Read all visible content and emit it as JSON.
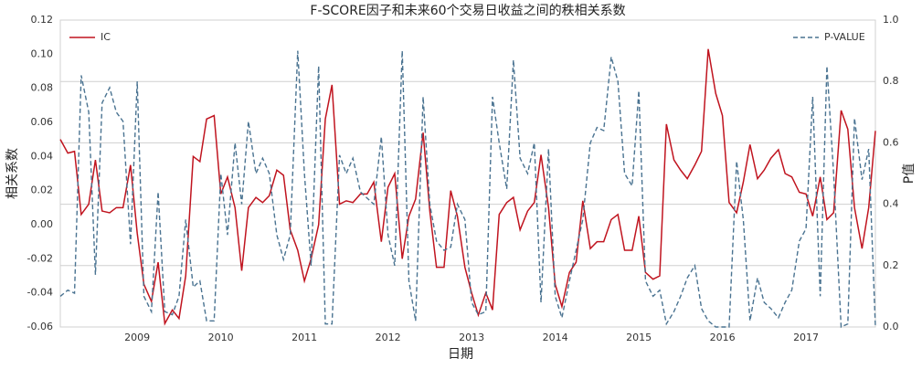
{
  "chart_data": {
    "type": "line",
    "title": "F-SCORE因子和未来60个交易日收益之间的秩相关系数",
    "x_label": "日期",
    "y_label": "相关系数",
    "y2_label": "P值",
    "x": [
      2008.08,
      2008.17,
      2008.25,
      2008.33,
      2008.42,
      2008.5,
      2008.58,
      2008.67,
      2008.75,
      2008.83,
      2008.92,
      2009.0,
      2009.08,
      2009.17,
      2009.25,
      2009.33,
      2009.42,
      2009.5,
      2009.58,
      2009.67,
      2009.75,
      2009.83,
      2009.92,
      2010.0,
      2010.08,
      2010.17,
      2010.25,
      2010.33,
      2010.42,
      2010.5,
      2010.58,
      2010.67,
      2010.75,
      2010.83,
      2010.92,
      2011.0,
      2011.08,
      2011.17,
      2011.25,
      2011.33,
      2011.42,
      2011.5,
      2011.58,
      2011.67,
      2011.75,
      2011.83,
      2011.92,
      2012.0,
      2012.08,
      2012.17,
      2012.25,
      2012.33,
      2012.42,
      2012.5,
      2012.58,
      2012.67,
      2012.75,
      2012.83,
      2012.92,
      2013.0,
      2013.08,
      2013.17,
      2013.25,
      2013.33,
      2013.42,
      2013.5,
      2013.58,
      2013.67,
      2013.75,
      2013.83,
      2013.92,
      2014.0,
      2014.08,
      2014.17,
      2014.25,
      2014.33,
      2014.42,
      2014.5,
      2014.58,
      2014.67,
      2014.75,
      2014.83,
      2014.92,
      2015.0,
      2015.08,
      2015.17,
      2015.25,
      2015.33,
      2015.42,
      2015.5,
      2015.58,
      2015.67,
      2015.75,
      2015.83,
      2015.92,
      2016.0,
      2016.08,
      2016.17,
      2016.25,
      2016.33,
      2016.42,
      2016.5,
      2016.58,
      2016.67,
      2016.75,
      2016.83,
      2016.92,
      2017.0,
      2017.08,
      2017.17,
      2017.25,
      2017.33,
      2017.42,
      2017.5,
      2017.58,
      2017.67,
      2017.75,
      2017.83
    ],
    "series": [
      {
        "name": "IC",
        "color": "#c0141f",
        "dash": false,
        "legend": "upper left",
        "values": [
          0.05,
          0.042,
          0.043,
          0.006,
          0.012,
          0.038,
          0.008,
          0.007,
          0.01,
          0.01,
          0.035,
          -0.005,
          -0.035,
          -0.045,
          -0.022,
          -0.058,
          -0.05,
          -0.055,
          -0.03,
          0.04,
          0.037,
          0.062,
          0.064,
          0.018,
          0.028,
          0.01,
          -0.027,
          0.01,
          0.016,
          0.013,
          0.017,
          0.032,
          0.029,
          -0.003,
          -0.015,
          -0.033,
          -0.02,
          0.0,
          0.062,
          0.082,
          0.012,
          0.014,
          0.013,
          0.018,
          0.018,
          0.025,
          -0.01,
          0.022,
          0.03,
          -0.02,
          0.005,
          0.015,
          0.054,
          0.008,
          -0.025,
          -0.025,
          0.02,
          0.005,
          -0.025,
          -0.04,
          -0.053,
          -0.04,
          -0.05,
          0.006,
          0.013,
          0.016,
          -0.003,
          0.008,
          0.013,
          0.041,
          0.01,
          -0.035,
          -0.048,
          -0.028,
          -0.022,
          0.014,
          -0.014,
          -0.01,
          -0.01,
          0.003,
          0.006,
          -0.015,
          -0.015,
          0.005,
          -0.028,
          -0.032,
          -0.03,
          0.059,
          0.038,
          0.032,
          0.027,
          0.035,
          0.043,
          0.103,
          0.077,
          0.064,
          0.013,
          0.007,
          0.025,
          0.047,
          0.027,
          0.032,
          0.039,
          0.044,
          0.03,
          0.028,
          0.019,
          0.018,
          0.005,
          0.028,
          0.003,
          0.007,
          0.067,
          0.056,
          0.01,
          -0.014,
          0.01,
          0.055
        ]
      },
      {
        "name": "P-VALUE",
        "color": "#4a7391",
        "dash": true,
        "axis": "y2",
        "legend": "upper right",
        "values": [
          0.1,
          0.12,
          0.11,
          0.82,
          0.7,
          0.17,
          0.73,
          0.78,
          0.7,
          0.67,
          0.27,
          0.8,
          0.1,
          0.05,
          0.44,
          0.05,
          0.04,
          0.1,
          0.35,
          0.13,
          0.15,
          0.02,
          0.02,
          0.5,
          0.3,
          0.6,
          0.4,
          0.67,
          0.5,
          0.55,
          0.5,
          0.3,
          0.22,
          0.3,
          0.9,
          0.5,
          0.2,
          0.85,
          0.01,
          0.01,
          0.56,
          0.5,
          0.55,
          0.44,
          0.42,
          0.4,
          0.62,
          0.3,
          0.2,
          0.9,
          0.15,
          0.02,
          0.75,
          0.4,
          0.28,
          0.25,
          0.26,
          0.4,
          0.35,
          0.08,
          0.04,
          0.05,
          0.75,
          0.6,
          0.45,
          0.87,
          0.55,
          0.5,
          0.6,
          0.08,
          0.58,
          0.1,
          0.03,
          0.15,
          0.25,
          0.35,
          0.6,
          0.65,
          0.64,
          0.88,
          0.8,
          0.5,
          0.46,
          0.77,
          0.15,
          0.1,
          0.12,
          0.01,
          0.05,
          0.1,
          0.16,
          0.2,
          0.06,
          0.02,
          0.0,
          0.0,
          0.0,
          0.54,
          0.35,
          0.02,
          0.16,
          0.08,
          0.06,
          0.03,
          0.08,
          0.12,
          0.28,
          0.32,
          0.75,
          0.1,
          0.85,
          0.5,
          0.0,
          0.01,
          0.68,
          0.48,
          0.58,
          0.0
        ]
      }
    ],
    "xlim": [
      2008.08,
      2017.83
    ],
    "xticks": [
      2009,
      2010,
      2011,
      2012,
      2013,
      2014,
      2015,
      2016,
      2017
    ],
    "ylim": [
      -0.06,
      0.12
    ],
    "yticks": [
      -0.06,
      -0.04,
      -0.02,
      {
        "value": 0,
        "label": "0.00"
      },
      0.02,
      0.04,
      0.06,
      0.08,
      {
        "value": 0.1,
        "label": "0.10"
      },
      0.12
    ],
    "y2lim": [
      0,
      1
    ],
    "y2ticks": [
      {
        "value": 0,
        "label": "0.0"
      },
      0.2,
      0.4,
      0.6,
      0.8,
      {
        "value": 1,
        "label": "1.0"
      }
    ],
    "grid": "y2"
  }
}
